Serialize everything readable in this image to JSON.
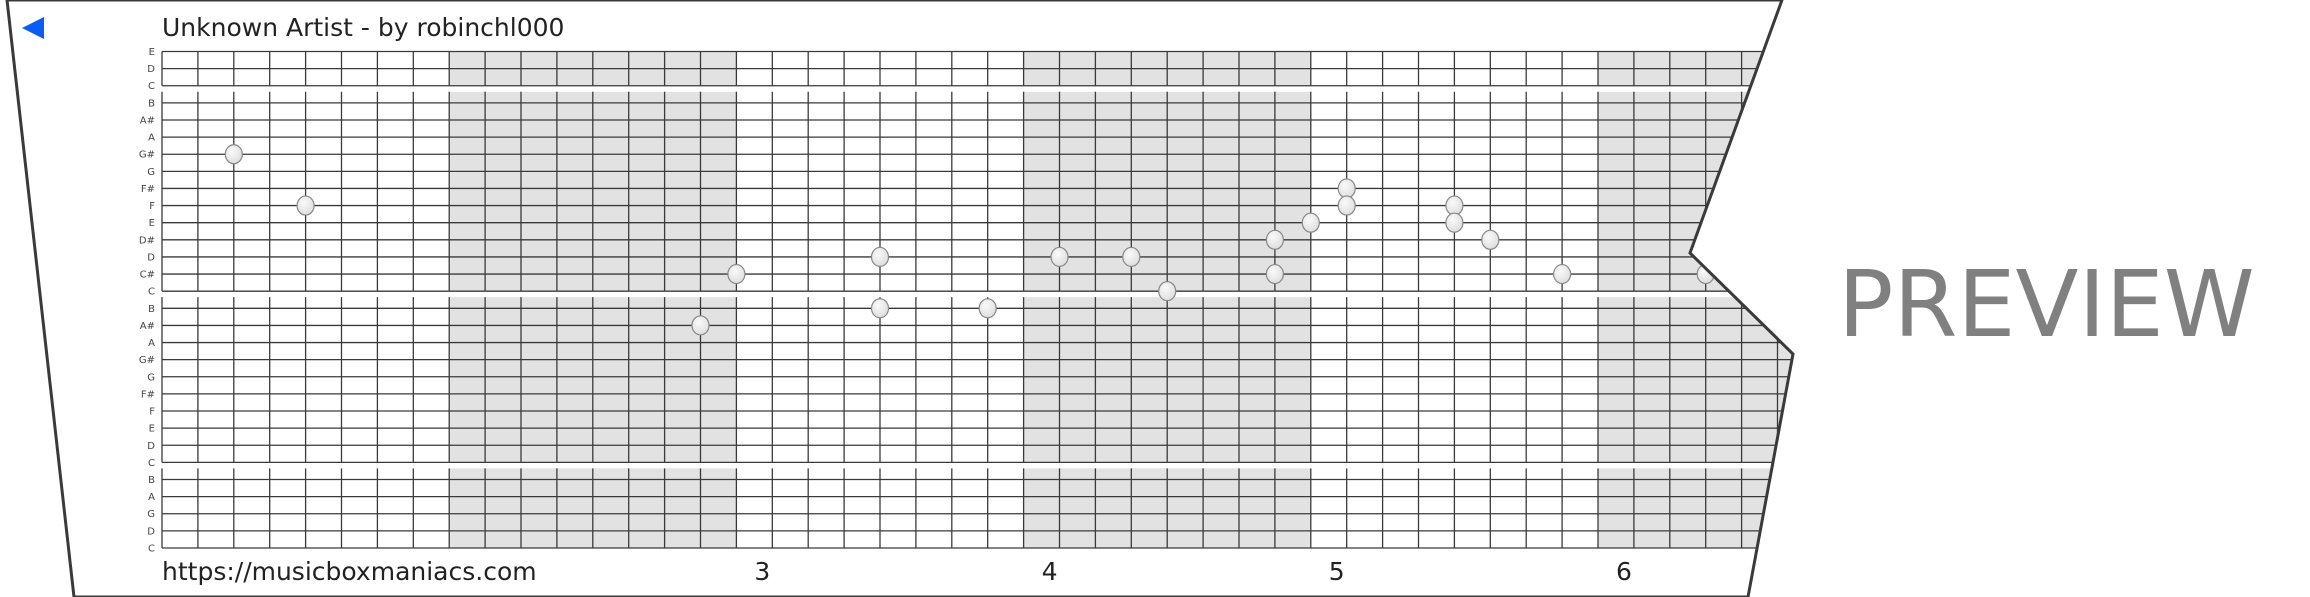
{
  "header": {
    "title": "Unknown Artist - by robinchl000",
    "back_icon": "play-left-triangle-icon",
    "back_color": "#0a5cf5"
  },
  "grid": {
    "pitches": [
      "E",
      "D",
      "C",
      "B",
      "A#",
      "A",
      "G#",
      "G",
      "F#",
      "F",
      "E",
      "D#",
      "D",
      "C#",
      "C",
      "B",
      "A#",
      "A",
      "G#",
      "G",
      "F#",
      "F",
      "E",
      "D",
      "C",
      "B",
      "A",
      "G",
      "D",
      "C"
    ],
    "steps_per_measure": 8,
    "shade_color": "#e2e2e2",
    "notes": [
      {
        "step": 2,
        "row": 6,
        "pitch": "G#"
      },
      {
        "step": 4,
        "row": 9,
        "pitch": "F"
      },
      {
        "step": 15,
        "row": 16,
        "pitch": "A#"
      },
      {
        "step": 16,
        "row": 13,
        "pitch": "C#"
      },
      {
        "step": 20,
        "row": 12,
        "pitch": "D"
      },
      {
        "step": 20,
        "row": 15,
        "pitch": "B"
      },
      {
        "step": 23,
        "row": 15,
        "pitch": "B"
      },
      {
        "step": 25,
        "row": 12,
        "pitch": "D"
      },
      {
        "step": 27,
        "row": 12,
        "pitch": "D"
      },
      {
        "step": 28,
        "row": 14,
        "pitch": "C"
      },
      {
        "step": 31,
        "row": 11,
        "pitch": "D#"
      },
      {
        "step": 31,
        "row": 13,
        "pitch": "C#"
      },
      {
        "step": 32,
        "row": 10,
        "pitch": "E"
      },
      {
        "step": 33,
        "row": 8,
        "pitch": "F#"
      },
      {
        "step": 33,
        "row": 9,
        "pitch": "F"
      },
      {
        "step": 36,
        "row": 9,
        "pitch": "F"
      },
      {
        "step": 36,
        "row": 10,
        "pitch": "E"
      },
      {
        "step": 37,
        "row": 11,
        "pitch": "D#"
      },
      {
        "step": 39,
        "row": 13,
        "pitch": "C#"
      },
      {
        "step": 43,
        "row": 13,
        "pitch": "C#"
      }
    ]
  },
  "footer": {
    "url": "https://musicboxmaniacs.com",
    "measures": [
      "3",
      "4",
      "5",
      "6"
    ]
  },
  "watermark": "PREVIEW"
}
